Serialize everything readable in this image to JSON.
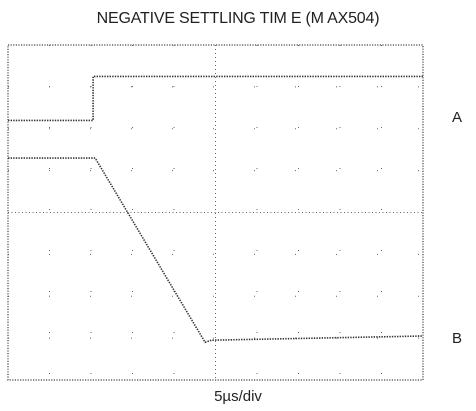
{
  "title": "NEGATIVE SETTLING TIM E (M AX504)",
  "xlabel": "5µs/div",
  "chart_data": {
    "type": "line",
    "title": "NEGATIVE SETTLING TIM E (M AX504)",
    "xlabel": "5µs/div",
    "ylabel": "",
    "x_divisions": 10,
    "y_divisions": 8,
    "xlim": [
      0,
      10
    ],
    "ylim": [
      0,
      8
    ],
    "grid": true,
    "series": [
      {
        "name": "A",
        "x": [
          0,
          2.05,
          2.05,
          10
        ],
        "y": [
          6.2,
          6.2,
          7.25,
          7.25
        ]
      },
      {
        "name": "B",
        "x": [
          0,
          2.1,
          4.75,
          4.9,
          10
        ],
        "y": [
          5.3,
          5.3,
          0.9,
          0.95,
          1.05
        ]
      }
    ]
  },
  "colors": {
    "trace": "#333333",
    "grid": "#666666",
    "frame": "#444444"
  }
}
